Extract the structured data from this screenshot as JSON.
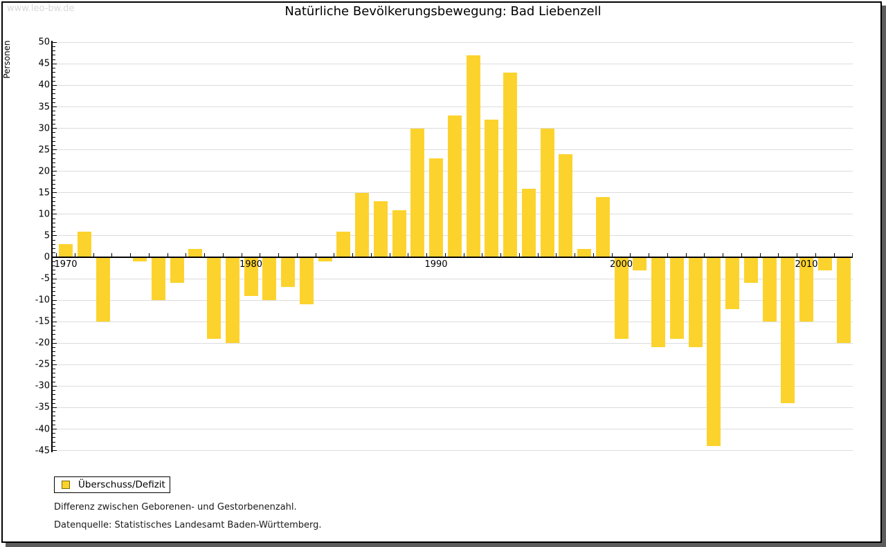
{
  "watermark": "www.leo-bw.de",
  "title": "Natürliche Bevölkerungsbewegung: Bad Liebenzell",
  "legend": {
    "label": "Überschuss/Defizit"
  },
  "footnotes": [
    "Differenz zwischen Geborenen- und Gestorbenenzahl.",
    "Datenquelle: Statistisches Landesamt Baden-Württemberg."
  ],
  "chart_data": {
    "type": "bar",
    "title": "Natürliche Bevölkerungsbewegung: Bad Liebenzell",
    "xlabel": "",
    "ylabel": "Personen",
    "ylim": [
      -45,
      50
    ],
    "ytick_step": 5,
    "grid": true,
    "legend_position": "bottom-left",
    "bar_color": "#fcd32d",
    "series_name": "Überschuss/Defizit",
    "decade_labels": [
      "1970",
      "1980",
      "1990",
      "2000",
      "2010"
    ],
    "categories": [
      1970,
      1971,
      1972,
      1973,
      1974,
      1975,
      1976,
      1977,
      1978,
      1979,
      1980,
      1981,
      1982,
      1983,
      1984,
      1985,
      1986,
      1987,
      1988,
      1989,
      1990,
      1991,
      1992,
      1993,
      1994,
      1995,
      1996,
      1997,
      1998,
      1999,
      2000,
      2001,
      2002,
      2003,
      2004,
      2005,
      2006,
      2007,
      2008,
      2009,
      2010,
      2011,
      2012
    ],
    "values": [
      3,
      6,
      -15,
      0,
      -1,
      -10,
      -6,
      2,
      -19,
      -20,
      -9,
      -10,
      -7,
      -11,
      -1,
      6,
      15,
      13,
      11,
      30,
      23,
      33,
      47,
      32,
      43,
      16,
      30,
      24,
      2,
      14,
      -19,
      -3,
      -21,
      -19,
      -21,
      -44,
      -12,
      -6,
      -15,
      -34,
      -15,
      -3,
      -20
    ]
  }
}
